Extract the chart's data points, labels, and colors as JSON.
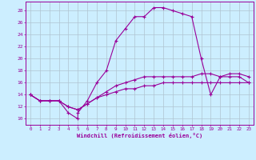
{
  "xlabel": "Windchill (Refroidissement éolien,°C)",
  "bg_color": "#cceeff",
  "line_color": "#990099",
  "grid_color": "#b0c4d0",
  "xlim": [
    -0.5,
    23.5
  ],
  "ylim": [
    9,
    29.5
  ],
  "yticks": [
    10,
    12,
    14,
    16,
    18,
    20,
    22,
    24,
    26,
    28
  ],
  "xticks": [
    0,
    1,
    2,
    3,
    4,
    5,
    6,
    7,
    8,
    9,
    10,
    11,
    12,
    13,
    14,
    15,
    16,
    17,
    18,
    19,
    20,
    21,
    22,
    23
  ],
  "series1_x": [
    0,
    1,
    2,
    3,
    4,
    5,
    5,
    6,
    7,
    8,
    9,
    10,
    11,
    12,
    13,
    14,
    15,
    16,
    17,
    18,
    19,
    20,
    21,
    22,
    23
  ],
  "series1_y": [
    14,
    13,
    13,
    13,
    11,
    10,
    11,
    13,
    16,
    18,
    23,
    25,
    27,
    27,
    28.5,
    28.5,
    28,
    27.5,
    27,
    20,
    14,
    17,
    17,
    17,
    16
  ],
  "series2_x": [
    0,
    1,
    2,
    3,
    4,
    5,
    6,
    7,
    8,
    9,
    10,
    11,
    12,
    13,
    14,
    15,
    16,
    17,
    18,
    19,
    20,
    21,
    22,
    23
  ],
  "series2_y": [
    14,
    13,
    13,
    13,
    12,
    11.5,
    12.5,
    13.5,
    14.5,
    15.5,
    16,
    16.5,
    17,
    17,
    17,
    17,
    17,
    17,
    17.5,
    17.5,
    17,
    17.5,
    17.5,
    17
  ],
  "series3_x": [
    0,
    1,
    2,
    3,
    4,
    5,
    6,
    7,
    8,
    9,
    10,
    11,
    12,
    13,
    14,
    15,
    16,
    17,
    18,
    19,
    20,
    21,
    22,
    23
  ],
  "series3_y": [
    14,
    13,
    13,
    13,
    12,
    11.5,
    12.5,
    13.5,
    14,
    14.5,
    15,
    15,
    15.5,
    15.5,
    16,
    16,
    16,
    16,
    16,
    16,
    16,
    16,
    16,
    16
  ]
}
